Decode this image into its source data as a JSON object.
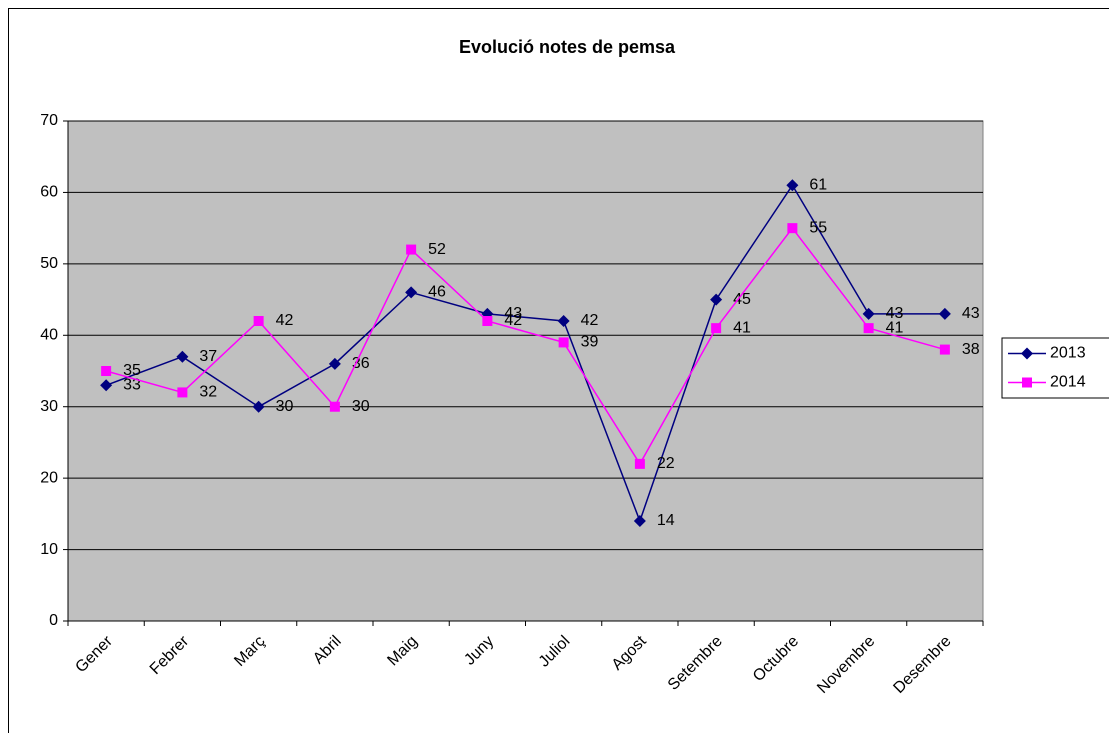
{
  "chart_data": {
    "type": "line",
    "title": "Evolució notes de pemsa",
    "categories": [
      "Gener",
      "Febrer",
      "Març",
      "Abril",
      "Maig",
      "Juny",
      "Juliol",
      "Agost",
      "Setembre",
      "Octubre",
      "Novembre",
      "Desembre"
    ],
    "series": [
      {
        "name": "2013",
        "color": "#000080",
        "marker": "diamond",
        "values": [
          33,
          37,
          30,
          36,
          46,
          43,
          42,
          14,
          45,
          61,
          43,
          43
        ]
      },
      {
        "name": "2014",
        "color": "#ff00ff",
        "marker": "square",
        "values": [
          35,
          32,
          42,
          30,
          52,
          42,
          39,
          22,
          41,
          55,
          41,
          38
        ]
      }
    ],
    "ylim": [
      0,
      70
    ],
    "yticks": [
      0,
      10,
      20,
      30,
      40,
      50,
      60,
      70
    ],
    "grid": true,
    "legend": "right",
    "plot_background": "#c0c0c0"
  }
}
